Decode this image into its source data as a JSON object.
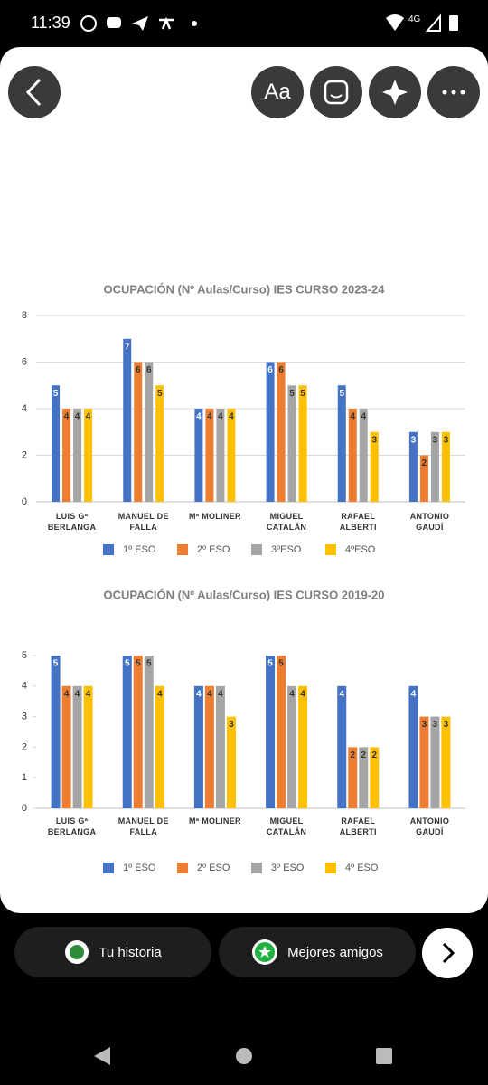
{
  "status_bar": {
    "time": "11:39",
    "network": "4G"
  },
  "toolbar": {
    "text_button": "Aa"
  },
  "chart_data": [
    {
      "type": "bar",
      "title": "OCUPACIÓN (Nº Aulas/Curso) IES CURSO 2023-24",
      "categories": [
        "LUIS Gª BERLANGA",
        "MANUEL DE FALLA",
        "Mª MOLINER",
        "MIGUEL CATALÁN",
        "RAFAEL ALBERTI",
        "ANTONIO GAUDÍ"
      ],
      "series": [
        {
          "name": "1º ESO",
          "color": "#4472c4",
          "values": [
            5,
            7,
            4,
            6,
            5,
            3
          ]
        },
        {
          "name": "2º ESO",
          "color": "#ed7d31",
          "values": [
            4,
            6,
            4,
            6,
            4,
            2
          ]
        },
        {
          "name": "3ºESO",
          "color": "#a5a5a5",
          "values": [
            4,
            6,
            4,
            5,
            4,
            3
          ]
        },
        {
          "name": "4ºESO",
          "color": "#ffc000",
          "values": [
            4,
            5,
            4,
            5,
            3,
            3
          ]
        }
      ],
      "ylim": [
        0,
        8
      ],
      "yticks": [
        0,
        2,
        4,
        6,
        8
      ],
      "grid": true,
      "legend": "bottom"
    },
    {
      "type": "bar",
      "title": "OCUPACIÓN (Nº Aulas/Curso) IES CURSO 2019-20",
      "categories": [
        "LUIS Gª BERLANGA",
        "MANUEL DE FALLA",
        "Mª MOLINER",
        "MIGUEL CATALÁN",
        "RAFAEL ALBERTI",
        "ANTONIO GAUDÍ"
      ],
      "series": [
        {
          "name": "1º ESO",
          "color": "#4472c4",
          "values": [
            5,
            5,
            4,
            5,
            4,
            4
          ]
        },
        {
          "name": "2º ESO",
          "color": "#ed7d31",
          "values": [
            4,
            5,
            4,
            5,
            2,
            3
          ]
        },
        {
          "name": "3º ESO",
          "color": "#a5a5a5",
          "values": [
            4,
            5,
            4,
            4,
            2,
            3
          ]
        },
        {
          "name": "4º ESO",
          "color": "#ffc000",
          "values": [
            4,
            4,
            3,
            4,
            2,
            3
          ]
        }
      ],
      "ylim": [
        0,
        5
      ],
      "yticks": [
        0,
        1,
        2,
        3,
        4,
        5
      ],
      "grid": false,
      "legend": "bottom"
    }
  ],
  "footer": {
    "story": "Tu historia",
    "close_friends": "Mejores amigos"
  }
}
